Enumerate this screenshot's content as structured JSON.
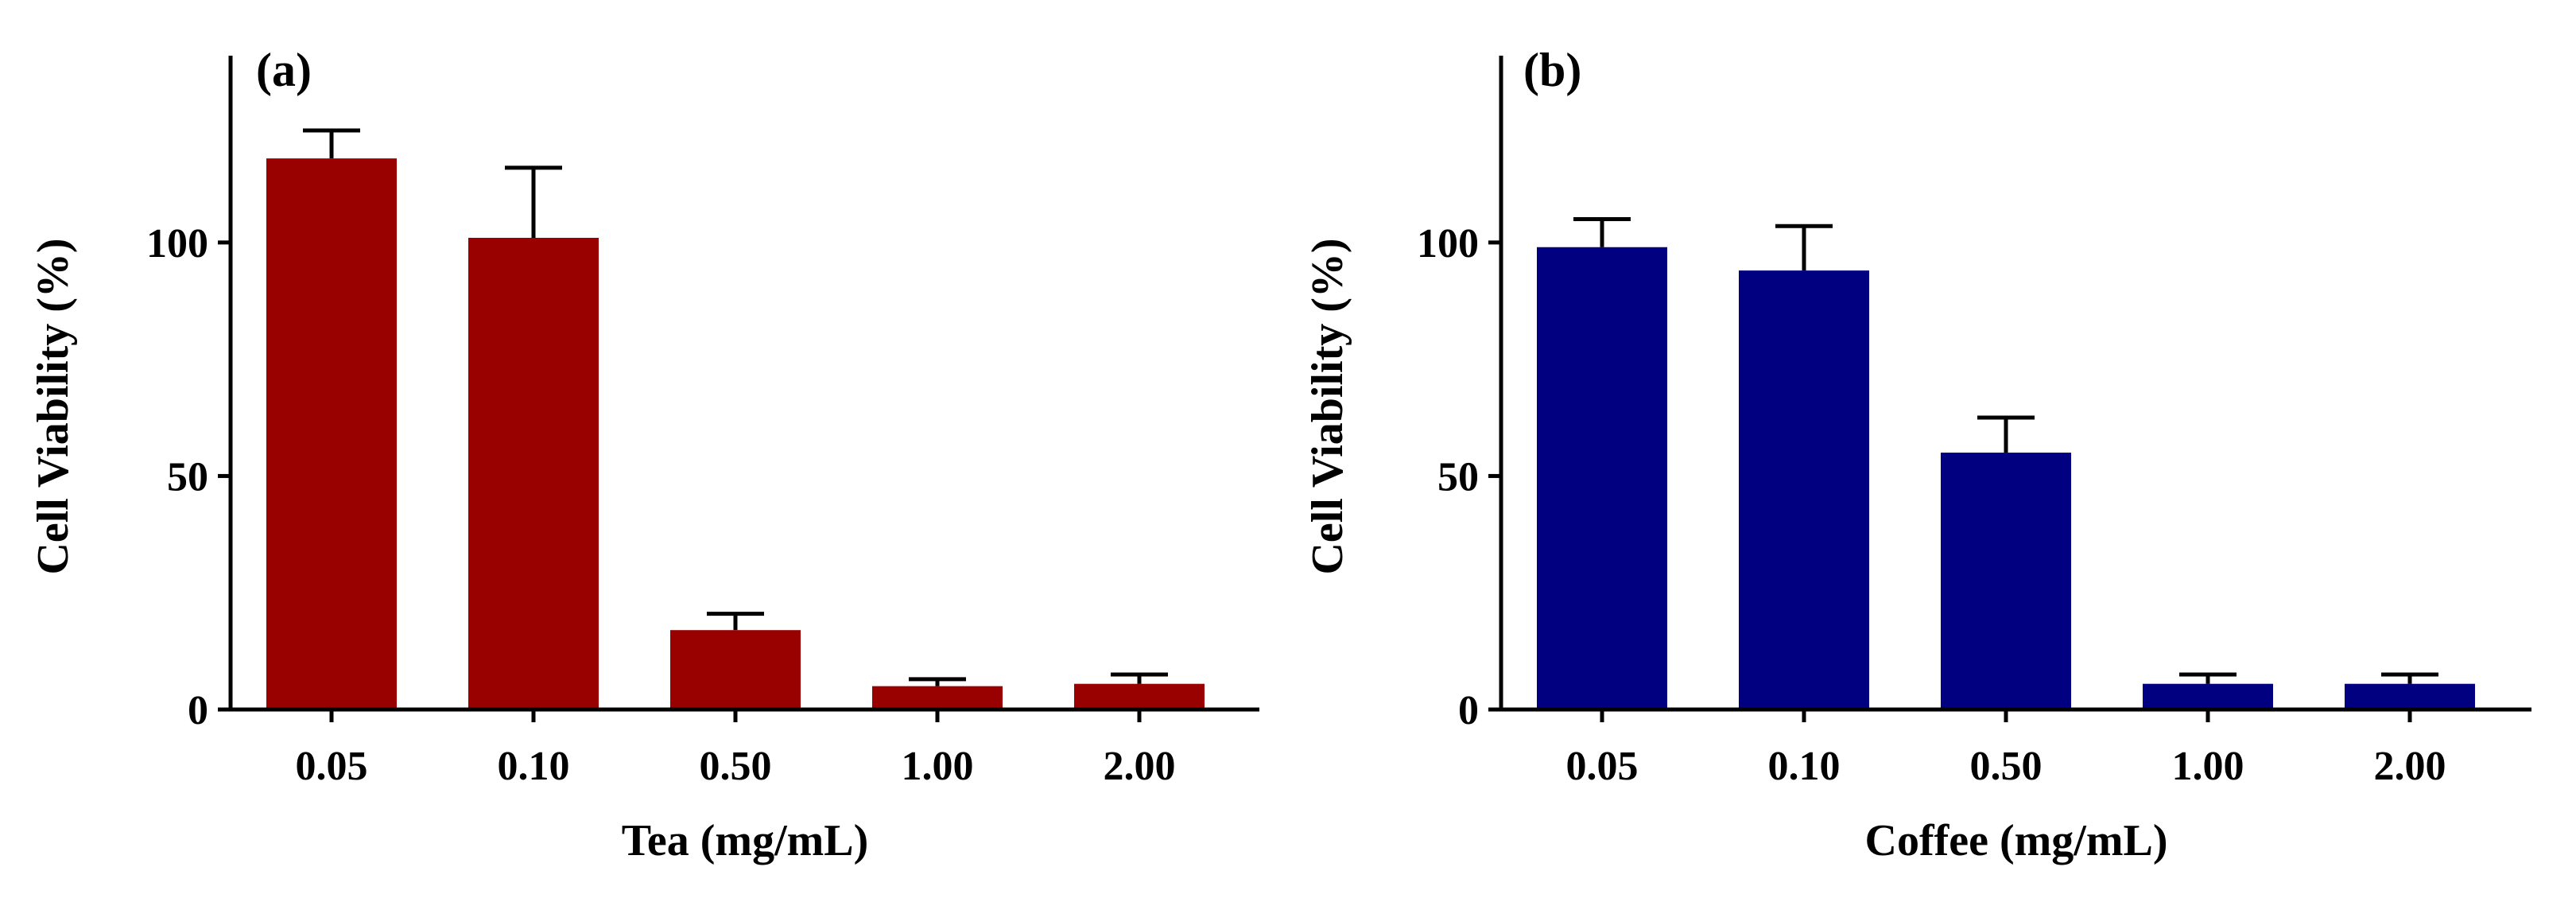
{
  "chart_data": [
    {
      "type": "bar",
      "panel_label": "(a)",
      "categories": [
        "0.05",
        "0.10",
        "0.50",
        "1.00",
        "2.00"
      ],
      "values": [
        118,
        101,
        17,
        5,
        5.5
      ],
      "errors": [
        6,
        15,
        3.5,
        1.5,
        2
      ],
      "xlabel": "Tea (mg/mL)",
      "ylabel": "Cell Viability (%)",
      "ylim": [
        0,
        140
      ],
      "yticks": [
        "0",
        "50",
        "100"
      ],
      "color": "#990000",
      "grid": false
    },
    {
      "type": "bar",
      "panel_label": "(b)",
      "categories": [
        "0.05",
        "0.10",
        "0.50",
        "1.00",
        "2.00"
      ],
      "values": [
        99,
        94,
        55,
        5.5,
        5.5
      ],
      "errors": [
        6,
        9.5,
        7.5,
        2,
        2
      ],
      "xlabel": "Coffee (mg/mL)",
      "ylabel": "Cell Viability (%)",
      "ylim": [
        0,
        140
      ],
      "yticks": [
        "0",
        "50",
        "100"
      ],
      "color": "#000080",
      "grid": false
    }
  ]
}
